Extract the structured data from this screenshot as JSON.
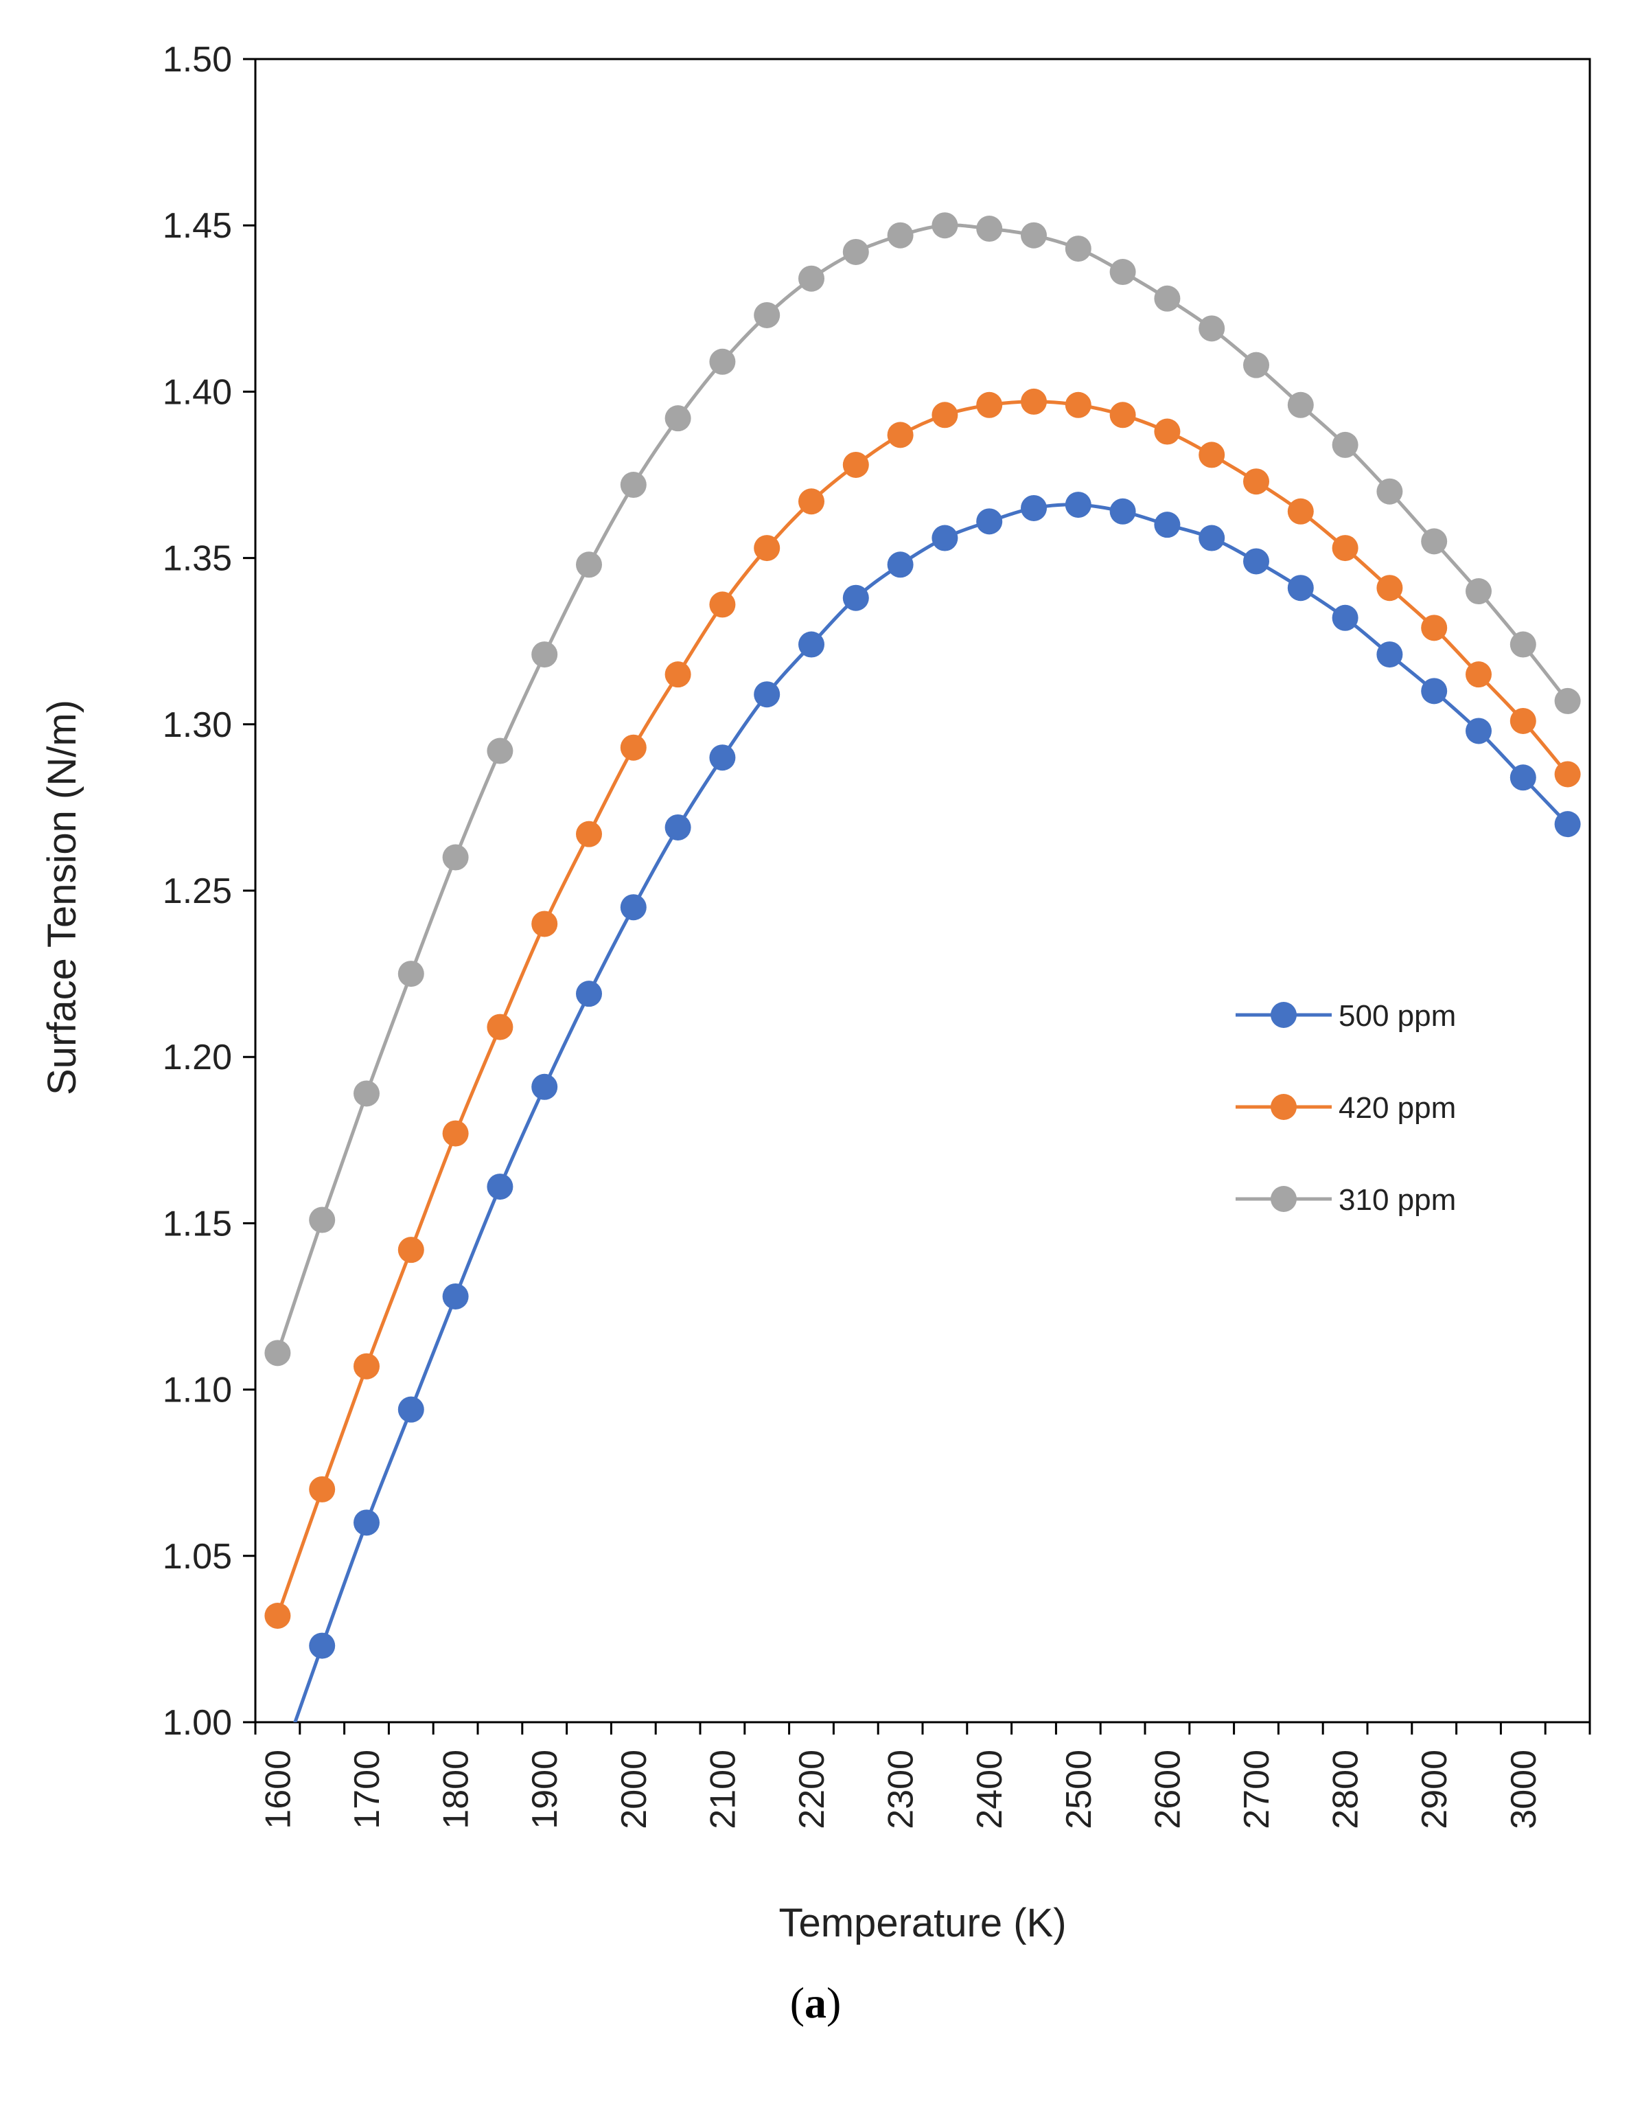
{
  "chart_data": {
    "type": "line",
    "title": "",
    "xlabel": "Temperature (K)",
    "ylabel": "Surface Tension (N/m)",
    "xlim": [
      1575,
      3075
    ],
    "ylim": [
      1.0,
      1.5
    ],
    "x_ticks": [
      "1600",
      "1700",
      "1800",
      "1900",
      "2000",
      "2100",
      "2200",
      "2300",
      "2400",
      "2500",
      "2600",
      "2700",
      "2800",
      "2900",
      "3000"
    ],
    "y_ticks": [
      "1.00",
      "1.05",
      "1.10",
      "1.15",
      "1.20",
      "1.25",
      "1.30",
      "1.35",
      "1.40",
      "1.45",
      "1.50"
    ],
    "grid": false,
    "legend_position": "right-middle",
    "x": [
      1600,
      1650,
      1700,
      1750,
      1800,
      1850,
      1900,
      1950,
      2000,
      2050,
      2100,
      2150,
      2200,
      2250,
      2300,
      2350,
      2400,
      2450,
      2500,
      2550,
      2600,
      2650,
      2700,
      2750,
      2800,
      2850,
      2900,
      2950,
      3000,
      3050
    ],
    "series": [
      {
        "name": "500 ppm",
        "color": "#4472C4",
        "values": [
          0.985,
          1.023,
          1.06,
          1.094,
          1.128,
          1.161,
          1.191,
          1.219,
          1.245,
          1.269,
          1.29,
          1.309,
          1.324,
          1.338,
          1.348,
          1.356,
          1.361,
          1.365,
          1.366,
          1.364,
          1.36,
          1.356,
          1.349,
          1.341,
          1.332,
          1.321,
          1.31,
          1.298,
          1.284,
          1.27
        ]
      },
      {
        "name": "420 ppm",
        "color": "#ED7D31",
        "values": [
          1.032,
          1.07,
          1.107,
          1.142,
          1.177,
          1.209,
          1.24,
          1.267,
          1.293,
          1.315,
          1.336,
          1.353,
          1.367,
          1.378,
          1.387,
          1.393,
          1.396,
          1.397,
          1.396,
          1.393,
          1.388,
          1.381,
          1.373,
          1.364,
          1.353,
          1.341,
          1.329,
          1.315,
          1.301,
          1.285
        ]
      },
      {
        "name": "310 ppm",
        "color": "#A5A5A5",
        "values": [
          1.111,
          1.151,
          1.189,
          1.225,
          1.26,
          1.292,
          1.321,
          1.348,
          1.372,
          1.392,
          1.409,
          1.423,
          1.434,
          1.442,
          1.447,
          1.45,
          1.449,
          1.447,
          1.443,
          1.436,
          1.428,
          1.419,
          1.408,
          1.396,
          1.384,
          1.37,
          1.355,
          1.34,
          1.324,
          1.307
        ]
      }
    ]
  },
  "caption": {
    "open": "(",
    "label": "a",
    "close": ")"
  }
}
